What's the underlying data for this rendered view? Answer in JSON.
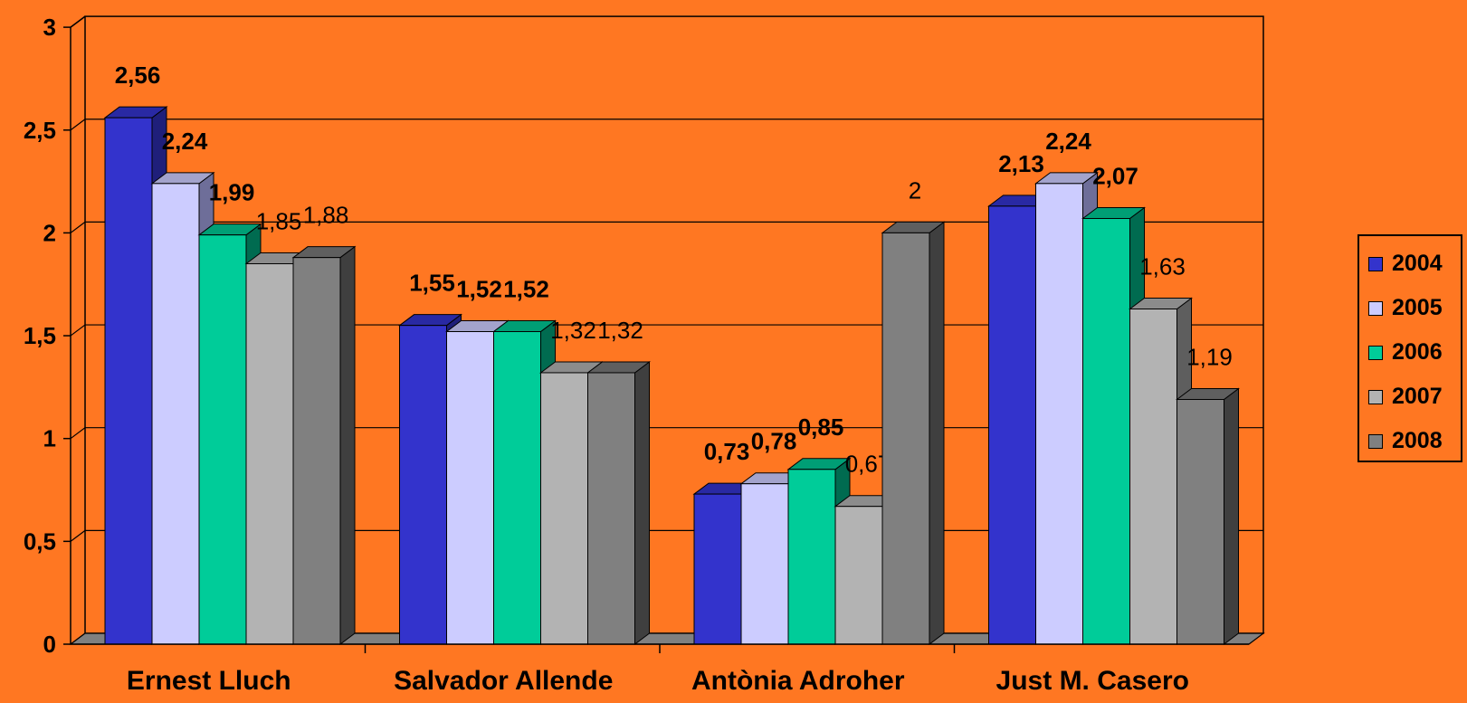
{
  "chart_data": {
    "type": "bar",
    "categories": [
      "Ernest Lluch",
      "Salvador Allende",
      "Antònia Adroher",
      "Just M. Casero"
    ],
    "series": [
      {
        "name": "2004",
        "values": [
          2.56,
          1.55,
          0.73,
          2.13
        ],
        "labels": [
          "2,56",
          "1,55",
          "0,73",
          "2,13"
        ],
        "color": "#3333CC",
        "side": "#1F1F7A",
        "top": "#2929A3",
        "bold": true
      },
      {
        "name": "2005",
        "values": [
          2.24,
          1.52,
          0.78,
          2.24
        ],
        "labels": [
          "2,24",
          "1,52",
          "0,78",
          "2,24"
        ],
        "color": "#CCCCFF",
        "side": "#6E6E99",
        "top": "#A3A3CC",
        "bold": true
      },
      {
        "name": "2006",
        "values": [
          1.99,
          1.52,
          0.85,
          2.07
        ],
        "labels": [
          "1,99",
          "1,52",
          "0,85",
          "2,07"
        ],
        "color": "#00CC99",
        "side": "#006B50",
        "top": "#009E75",
        "bold": true
      },
      {
        "name": "2007",
        "values": [
          1.85,
          1.32,
          0.67,
          1.63
        ],
        "labels": [
          "1,85",
          "1,32",
          "0,67",
          "1,63"
        ],
        "color": "#B3B3B3",
        "side": "#5E5E5E",
        "top": "#8C8C8C",
        "bold": false
      },
      {
        "name": "2008",
        "values": [
          1.88,
          1.32,
          2.0,
          1.19
        ],
        "labels": [
          "1,88",
          "1,32",
          "2",
          "1,19"
        ],
        "color": "#808080",
        "side": "#3F3F3F",
        "top": "#5F5F5F",
        "bold": false
      }
    ],
    "y_ticks": [
      "0",
      "0,5",
      "1",
      "1,5",
      "2",
      "2,5",
      "3"
    ],
    "ylim": [
      0,
      3
    ],
    "grid": true,
    "legend_position": "right",
    "title": "",
    "xlabel": "",
    "ylabel": ""
  }
}
